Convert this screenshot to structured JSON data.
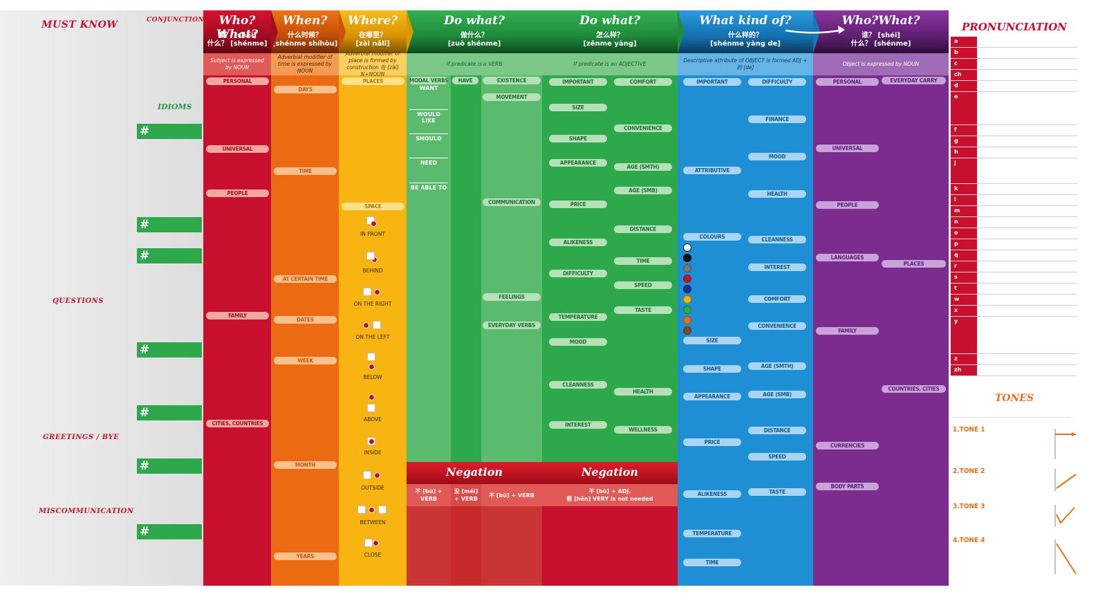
{
  "left": {
    "must_know": "MUST KNOW",
    "conjunctions": "CONJUNCTIONS",
    "idioms": "IDIOMS",
    "questions": "QUESTIONS",
    "greetings": "GREETINGS / BYE",
    "miscommunication": "MISCOMMUNICATION",
    "hash": "#"
  },
  "who": {
    "title": "Who? What?",
    "zh1": "谁？ [shéi]",
    "zh2": "什么？ [shénme]",
    "sub": "Subject is expressed by NOUN",
    "pills": [
      "PERSONAL",
      "UNIVERSAL",
      "PEOPLE",
      "FAMILY",
      "CITIES, COUNTRIES"
    ]
  },
  "when": {
    "title": "When?",
    "zh1": "什么时候？",
    "zh2": "[shénme shíhòu]",
    "sub": "Adverbial modifier of time is expressed by NOUN",
    "pills": [
      "DAYS",
      "TIME",
      "AT CERTAIN TIME",
      "DATES",
      "WEEK",
      "MONTH",
      "YEARS"
    ]
  },
  "where": {
    "title": "Where?",
    "zh1": "在哪里？",
    "zh2": "[zài nǎlǐ]",
    "sub": "Adverbial modifier of place is formed by construction 在 [zài] N+NOUN",
    "pills": [
      "PLACES",
      "SPACE"
    ],
    "spaces": [
      "IN FRONT",
      "BEHIND",
      "ON THE RIGHT",
      "ON THE LEFT",
      "BELOW",
      "ABOVE",
      "INSIDE",
      "OUTSIDE",
      "BETWEEN",
      "CLOSE"
    ]
  },
  "dowhat1": {
    "title": "Do what?",
    "zh1": "做什么？",
    "zh2": "[zuò shénme]",
    "sub": "If predicate is a VERB",
    "pill_modal": "MODAL VERBS",
    "pill_have": "HAVE",
    "modal": [
      "WANT",
      "WOULD LIKE",
      "SHOULD",
      "NEED",
      "BE ABLE TO"
    ],
    "pills": [
      "EXISTENCE",
      "MOVEMENT",
      "COMMUNICATION",
      "FEELINGS",
      "EVERYDAY VERBS"
    ],
    "negation": "Negation",
    "neg1": "不 [bù] + VERB",
    "neg2": "没 [méi] + VERB",
    "neg3": "不 [bù] + VERB"
  },
  "dowhat2": {
    "title": "Do what?",
    "zh1": "怎么样？",
    "zh2": "[zěnme yàng]",
    "sub": "If predicate is an ADJECTIVE",
    "pills_l": [
      "IMPORTANT",
      "SIZE",
      "SHAPE",
      "APPEARANCE",
      "PRICE",
      "ALIKENESS",
      "DIFFICULTY",
      "TEMPERATURE",
      "MOOD",
      "CLEANNESS",
      "INTEREST"
    ],
    "pills_r": [
      "COMFORT",
      "CONVENIENCE",
      "AGE (smth)",
      "AGE (smb)",
      "DISTANCE",
      "TIME",
      "SPEED",
      "TASTE",
      "HEALTH",
      "WELLNESS"
    ],
    "negation": "Negation",
    "neg1": "不 [bù] + ADJ.",
    "neg2": "很 [hěn] VERY is not needed"
  },
  "kind": {
    "title": "What kind of?",
    "zh1": "什么样的？",
    "zh2": "[shénme yàng de]",
    "sub": "Descriptive attribute of OBJECT is formed ADJ + 的 [de]",
    "pills_l": [
      "IMPORTANT",
      "ATTRIBUTIVE",
      "COLOURS",
      "SIZE",
      "SHAPE",
      "APPEARANCE",
      "PRICE",
      "ALIKENESS",
      "TEMPERATURE",
      "TIME"
    ],
    "pills_r": [
      "DIFFICULTY",
      "FINANCE",
      "MOOD",
      "HEALTH",
      "CLEANNESS",
      "INTEREST",
      "COMFORT",
      "CONVENIENCE",
      "AGE (smth)",
      "AGE (smb)",
      "DISTANCE",
      "SPEED",
      "TASTE"
    ],
    "colours": [
      "#ffffff",
      "#111111",
      "#777777",
      "#c8102e",
      "#1f2f7a",
      "#f5b400",
      "#2da84a",
      "#e8701a",
      "#7a4a1e"
    ]
  },
  "whoobj": {
    "title": "Who?What?",
    "zh1": "谁？ [shéi]",
    "zh2": "什么？ [shénme]",
    "sub": "Object is expressed by NOUN",
    "pills_l": [
      "PERSONAL",
      "UNIVERSAL",
      "PEOPLE",
      "LANGUAGES",
      "FAMILY",
      "CURRENCIES",
      "BODY PARTS"
    ],
    "pills_r": [
      "EVERYDAY CARRY",
      "PLACES",
      "COUNTRIES, CITIES"
    ]
  },
  "pron": {
    "title": "PRONUNCIATION",
    "letters": [
      "a",
      "b",
      "c",
      "ch",
      "d",
      "e",
      "f",
      "g",
      "h",
      "j",
      "k",
      "l",
      "m",
      "n",
      "o",
      "p",
      "q",
      "r",
      "s",
      "t",
      "w",
      "x",
      "y",
      "z",
      "zh"
    ],
    "tones_title": "TONES",
    "tones": [
      "1.TONE 1",
      "2.TONE 2",
      "3.TONE 3",
      "4.TONE 4"
    ]
  },
  "colors": {
    "red": "#c8102e",
    "orange": "#ec6a12",
    "yellow": "#f8b411",
    "green": "#2da84a",
    "blue": "#1e8fd5",
    "purple": "#7b2c8f"
  }
}
